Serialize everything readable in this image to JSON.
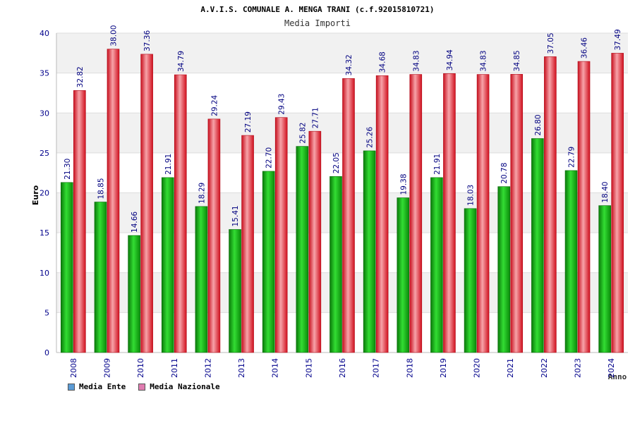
{
  "chart_data": {
    "type": "bar",
    "title": "A.V.I.S. COMUNALE A. MENGA TRANI (c.f.92015810721)",
    "subtitle": "Media Importi",
    "xlabel": "Anno",
    "ylabel": "Euro",
    "ylim": [
      0,
      40
    ],
    "yticks": [
      0,
      5,
      10,
      15,
      20,
      25,
      30,
      35,
      40
    ],
    "categories": [
      "2008",
      "2009",
      "2010",
      "2011",
      "2012",
      "2013",
      "2014",
      "2015",
      "2016",
      "2017",
      "2018",
      "2019",
      "2020",
      "2021",
      "2022",
      "2023",
      "2024"
    ],
    "series": [
      {
        "name": "Media Ente",
        "color": "#14b814",
        "values": [
          21.3,
          18.85,
          14.66,
          21.91,
          18.29,
          15.41,
          22.7,
          25.82,
          22.05,
          25.26,
          19.38,
          21.91,
          18.03,
          20.78,
          26.8,
          22.79,
          18.4
        ],
        "labels": [
          "21.30",
          "18.85",
          "14.66",
          "21.91",
          "18.29",
          "15.41",
          "22.70",
          "25.82",
          "22.05",
          "25.26",
          "19.38",
          "21.91",
          "18.03",
          "20.78",
          "26.80",
          "22.79",
          "18.40"
        ]
      },
      {
        "name": "Media Nazionale",
        "color": "#e8202e",
        "values": [
          32.82,
          38.0,
          37.36,
          34.79,
          29.24,
          27.19,
          29.43,
          27.71,
          34.32,
          34.68,
          34.83,
          34.94,
          34.83,
          34.85,
          37.05,
          36.46,
          37.49
        ],
        "labels": [
          "32.82",
          "38.00",
          "37.36",
          "34.79",
          "29.24",
          "27.19",
          "29.43",
          "27.71",
          "34.32",
          "34.68",
          "34.83",
          "34.94",
          "34.83",
          "34.85",
          "37.05",
          "36.46",
          "37.49"
        ]
      }
    ]
  },
  "legend": [
    {
      "label": "Media Ente",
      "color": "#5b9bd5"
    },
    {
      "label": "Media Nazionale",
      "color": "#e07cb0"
    }
  ]
}
